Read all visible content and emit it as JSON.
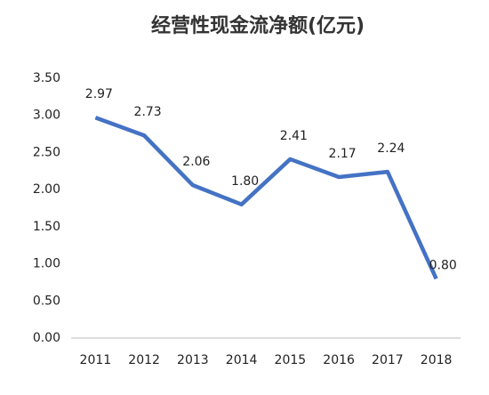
{
  "chart_data": {
    "type": "line",
    "title": "经营性现金流净额(亿元)",
    "categories": [
      "2011",
      "2012",
      "2013",
      "2014",
      "2015",
      "2016",
      "2017",
      "2018"
    ],
    "values": [
      2.97,
      2.73,
      2.06,
      1.8,
      2.41,
      2.17,
      2.24,
      0.8
    ],
    "value_labels": [
      "2.97",
      "2.73",
      "2.06",
      "1.80",
      "2.41",
      "2.17",
      "2.24",
      "0.80"
    ],
    "color": "#4472c4",
    "ylim": [
      0,
      3.5
    ],
    "yticks": [
      {
        "value": 0,
        "label": "0.00"
      },
      {
        "value": 0.5,
        "label": "0.50"
      },
      {
        "value": 1,
        "label": "1.00"
      },
      {
        "value": 1.5,
        "label": "1.50"
      },
      {
        "value": 2,
        "label": "2.00"
      },
      {
        "value": 2.5,
        "label": "2.50"
      },
      {
        "value": 3,
        "label": "3.00"
      },
      {
        "value": 3.5,
        "label": "3.50"
      }
    ],
    "grid": false
  }
}
